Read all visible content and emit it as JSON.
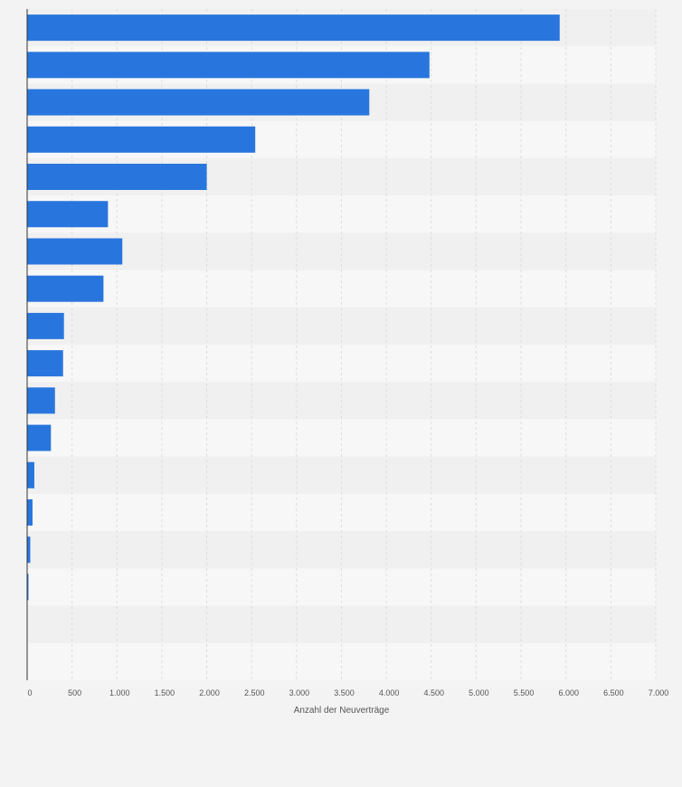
{
  "chart_data": {
    "type": "bar",
    "orientation": "horizontal",
    "categories": [
      "",
      "",
      "",
      "",
      "",
      "",
      "",
      "",
      "",
      "",
      "",
      "",
      "",
      "",
      "",
      "",
      "",
      ""
    ],
    "values": [
      5930,
      4480,
      3810,
      2540,
      2000,
      900,
      1060,
      850,
      410,
      400,
      310,
      265,
      80,
      60,
      35,
      15,
      0,
      0
    ],
    "xlabel": "Anzahl der Neuverträge",
    "ylabel": "",
    "xlim": [
      0,
      7000
    ],
    "xticks": [
      0,
      500,
      1000,
      1500,
      2000,
      2500,
      3000,
      3500,
      4000,
      4500,
      5000,
      5500,
      6000,
      6500,
      7000
    ],
    "xtick_labels": [
      "0",
      "500",
      "1.000",
      "1.500",
      "2.000",
      "2.500",
      "3.000",
      "3.500",
      "4.000",
      "4.500",
      "5.000",
      "5.500",
      "6.000",
      "6.500",
      "7.000"
    ],
    "grid": true,
    "colors": {
      "bar": "#2876dd",
      "band_dark": "#f0f0f0",
      "band_light": "#f7f7f7",
      "gridline": "#dddddd",
      "axis": "#333333"
    }
  }
}
